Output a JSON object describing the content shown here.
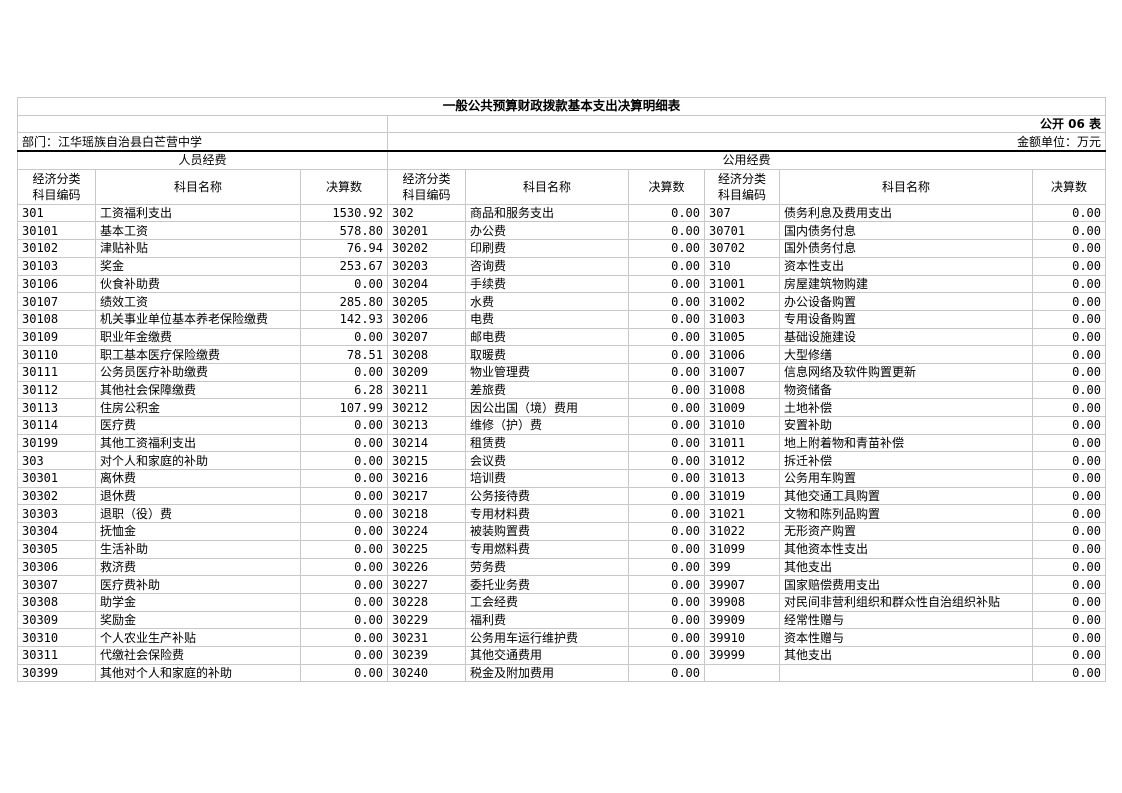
{
  "title": "一般公共预算财政拨款基本支出决算明细表",
  "form_no": "公开 06 表",
  "department": "部门：江华瑶族自治县白芒营中学",
  "unit": "金额单位：万元",
  "section_personnel": "人员经费",
  "section_public": "公用经费",
  "col_code": "经济分类\n科目编码",
  "col_name": "科目名称",
  "col_amount": "决算数",
  "rows": [
    [
      "301",
      "工资福利支出",
      "1530.92",
      "302",
      "商品和服务支出",
      "0.00",
      "307",
      "债务利息及费用支出",
      "0.00"
    ],
    [
      "30101",
      "基本工资",
      "578.80",
      "30201",
      "办公费",
      "0.00",
      "30701",
      "国内债务付息",
      "0.00"
    ],
    [
      "30102",
      "津贴补贴",
      "76.94",
      "30202",
      "印刷费",
      "0.00",
      "30702",
      "国外债务付息",
      "0.00"
    ],
    [
      "30103",
      "奖金",
      "253.67",
      "30203",
      "咨询费",
      "0.00",
      "310",
      "资本性支出",
      "0.00"
    ],
    [
      "30106",
      "伙食补助费",
      "0.00",
      "30204",
      "手续费",
      "0.00",
      "31001",
      "房屋建筑物购建",
      "0.00"
    ],
    [
      "30107",
      "绩效工资",
      "285.80",
      "30205",
      "水费",
      "0.00",
      "31002",
      "办公设备购置",
      "0.00"
    ],
    [
      "30108",
      "机关事业单位基本养老保险缴费",
      "142.93",
      "30206",
      "电费",
      "0.00",
      "31003",
      "专用设备购置",
      "0.00"
    ],
    [
      "30109",
      "职业年金缴费",
      "0.00",
      "30207",
      "邮电费",
      "0.00",
      "31005",
      "基础设施建设",
      "0.00"
    ],
    [
      "30110",
      "职工基本医疗保险缴费",
      "78.51",
      "30208",
      "取暖费",
      "0.00",
      "31006",
      "大型修缮",
      "0.00"
    ],
    [
      "30111",
      "公务员医疗补助缴费",
      "0.00",
      "30209",
      "物业管理费",
      "0.00",
      "31007",
      "信息网络及软件购置更新",
      "0.00"
    ],
    [
      "30112",
      "其他社会保障缴费",
      "6.28",
      "30211",
      "差旅费",
      "0.00",
      "31008",
      "物资储备",
      "0.00"
    ],
    [
      "30113",
      "住房公积金",
      "107.99",
      "30212",
      "因公出国（境）费用",
      "0.00",
      "31009",
      "土地补偿",
      "0.00"
    ],
    [
      "30114",
      "医疗费",
      "0.00",
      "30213",
      "维修（护）费",
      "0.00",
      "31010",
      "安置补助",
      "0.00"
    ],
    [
      "30199",
      "其他工资福利支出",
      "0.00",
      "30214",
      "租赁费",
      "0.00",
      "31011",
      "地上附着物和青苗补偿",
      "0.00"
    ],
    [
      "303",
      "对个人和家庭的补助",
      "0.00",
      "30215",
      "会议费",
      "0.00",
      "31012",
      "拆迁补偿",
      "0.00"
    ],
    [
      "30301",
      "离休费",
      "0.00",
      "30216",
      "培训费",
      "0.00",
      "31013",
      "公务用车购置",
      "0.00"
    ],
    [
      "30302",
      "退休费",
      "0.00",
      "30217",
      "公务接待费",
      "0.00",
      "31019",
      "其他交通工具购置",
      "0.00"
    ],
    [
      "30303",
      "退职（役）费",
      "0.00",
      "30218",
      "专用材料费",
      "0.00",
      "31021",
      "文物和陈列品购置",
      "0.00"
    ],
    [
      "30304",
      "抚恤金",
      "0.00",
      "30224",
      "被装购置费",
      "0.00",
      "31022",
      "无形资产购置",
      "0.00"
    ],
    [
      "30305",
      "生活补助",
      "0.00",
      "30225",
      "专用燃料费",
      "0.00",
      "31099",
      "其他资本性支出",
      "0.00"
    ],
    [
      "30306",
      "救济费",
      "0.00",
      "30226",
      "劳务费",
      "0.00",
      "399",
      "其他支出",
      "0.00"
    ],
    [
      "30307",
      "医疗费补助",
      "0.00",
      "30227",
      "委托业务费",
      "0.00",
      "39907",
      "国家赔偿费用支出",
      "0.00"
    ],
    [
      "30308",
      "助学金",
      "0.00",
      "30228",
      "工会经费",
      "0.00",
      "39908",
      "对民间非营利组织和群众性自治组织补贴",
      "0.00"
    ],
    [
      "30309",
      "奖励金",
      "0.00",
      "30229",
      "福利费",
      "0.00",
      "39909",
      "经常性赠与",
      "0.00"
    ],
    [
      "30310",
      "个人农业生产补贴",
      "0.00",
      "30231",
      "公务用车运行维护费",
      "0.00",
      "39910",
      "资本性赠与",
      "0.00"
    ],
    [
      "30311",
      "代缴社会保险费",
      "0.00",
      "30239",
      "其他交通费用",
      "0.00",
      "39999",
      "其他支出",
      "0.00"
    ],
    [
      "30399",
      "其他对个人和家庭的补助",
      "0.00",
      "30240",
      "税金及附加费用",
      "0.00",
      "",
      "",
      "0.00"
    ]
  ]
}
